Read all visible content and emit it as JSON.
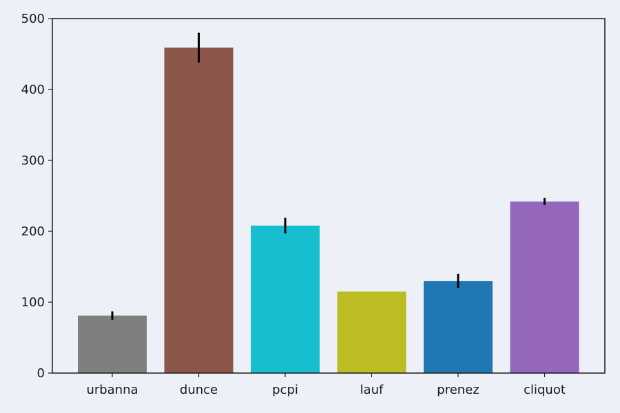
{
  "chart_data": {
    "type": "bar",
    "title": "",
    "xlabel": "",
    "ylabel": "",
    "categories": [
      "urbanna",
      "dunce",
      "pcpi",
      "lauf",
      "prenez",
      "cliquot"
    ],
    "values": [
      81,
      459,
      208,
      115,
      130,
      242
    ],
    "errors": [
      6,
      21,
      11,
      0,
      10,
      5
    ],
    "colors": [
      "#7f7f7f",
      "#8c564b",
      "#17becf",
      "#bcbd22",
      "#1f77b4",
      "#9467bd"
    ],
    "ylim": [
      0,
      500
    ],
    "yticks": [
      0,
      100,
      200,
      300,
      400,
      500
    ],
    "grid": false,
    "background": "#edf0f6"
  }
}
